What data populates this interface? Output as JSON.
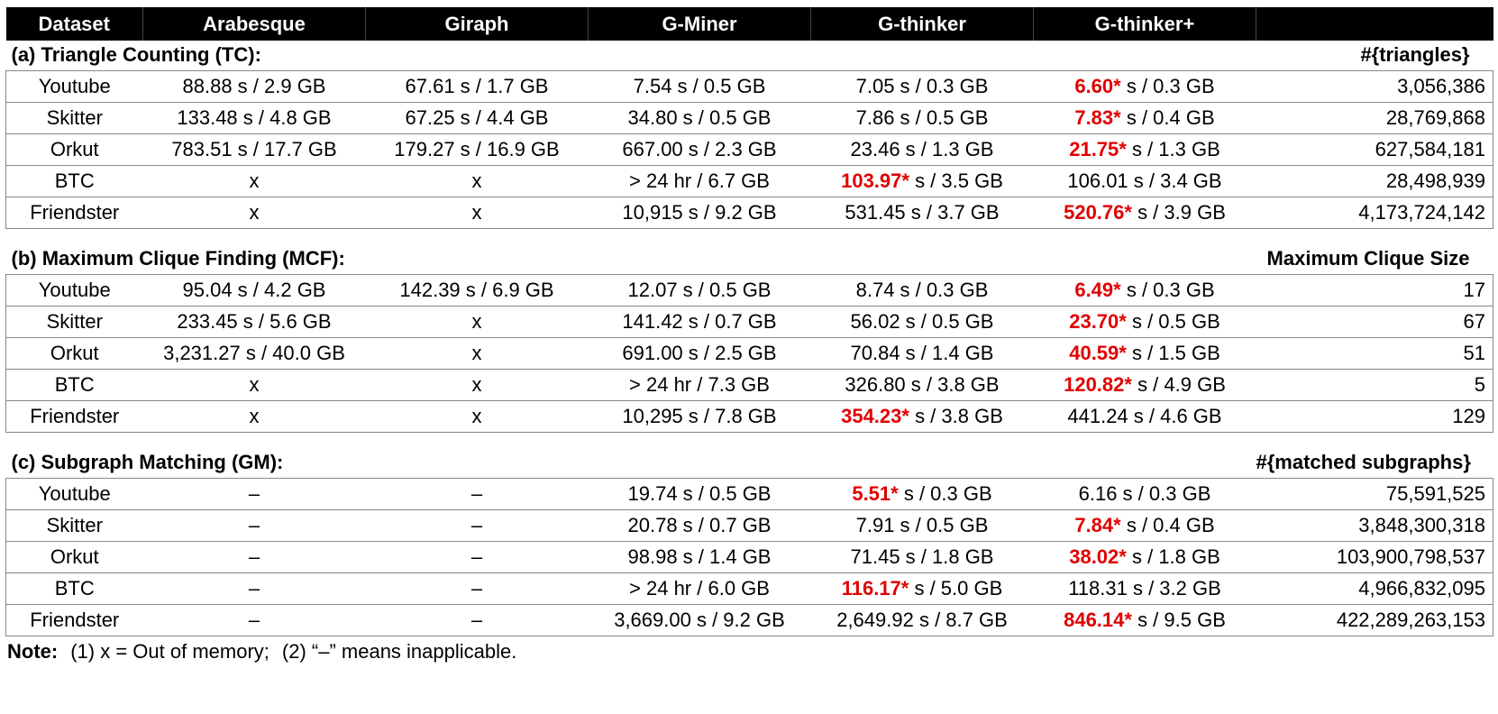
{
  "columns": [
    "Dataset",
    "Arabesque",
    "Giraph",
    "G-Miner",
    "G-thinker",
    "G-thinker+"
  ],
  "sections": [
    {
      "title": "(a) Triangle Counting (TC):",
      "count_header": "#{triangles}",
      "rows": [
        {
          "dataset": "Youtube",
          "cells": [
            "88.88 s / 2.9 GB",
            "67.61 s / 1.7 GB",
            "7.54 s / 0.5 GB",
            "7.05 s / 0.3 GB",
            {
              "best": "6.60*",
              "rest": " s / 0.3 GB"
            }
          ],
          "count": "3,056,386"
        },
        {
          "dataset": "Skitter",
          "cells": [
            "133.48 s / 4.8 GB",
            "67.25 s / 4.4 GB",
            "34.80 s / 0.5 GB",
            "7.86 s / 0.5 GB",
            {
              "best": "7.83*",
              "rest": " s / 0.4 GB"
            }
          ],
          "count": "28,769,868"
        },
        {
          "dataset": "Orkut",
          "cells": [
            "783.51 s / 17.7 GB",
            "179.27 s / 16.9 GB",
            "667.00 s / 2.3 GB",
            "23.46 s / 1.3 GB",
            {
              "best": "21.75*",
              "rest": " s / 1.3 GB"
            }
          ],
          "count": "627,584,181"
        },
        {
          "dataset": "BTC",
          "cells": [
            "x",
            "x",
            "> 24 hr / 6.7 GB",
            {
              "best": "103.97*",
              "rest": " s / 3.5 GB"
            },
            "106.01 s / 3.4 GB"
          ],
          "count": "28,498,939"
        },
        {
          "dataset": "Friendster",
          "cells": [
            "x",
            "x",
            "10,915 s / 9.2 GB",
            "531.45 s / 3.7 GB",
            {
              "best": "520.76*",
              "rest": " s / 3.9 GB"
            }
          ],
          "count": "4,173,724,142"
        }
      ]
    },
    {
      "title": "(b) Maximum Clique Finding (MCF):",
      "count_header": "Maximum Clique Size",
      "rows": [
        {
          "dataset": "Youtube",
          "cells": [
            "95.04 s / 4.2 GB",
            "142.39 s / 6.9 GB",
            "12.07 s / 0.5 GB",
            "8.74 s / 0.3 GB",
            {
              "best": "6.49*",
              "rest": " s / 0.3 GB"
            }
          ],
          "count": "17"
        },
        {
          "dataset": "Skitter",
          "cells": [
            "233.45 s / 5.6 GB",
            "x",
            "141.42 s / 0.7 GB",
            "56.02 s / 0.5 GB",
            {
              "best": "23.70*",
              "rest": " s / 0.5 GB"
            }
          ],
          "count": "67"
        },
        {
          "dataset": "Orkut",
          "cells": [
            "3,231.27 s / 40.0 GB",
            "x",
            "691.00 s / 2.5 GB",
            "70.84 s / 1.4 GB",
            {
              "best": "40.59*",
              "rest": " s / 1.5 GB"
            }
          ],
          "count": "51"
        },
        {
          "dataset": "BTC",
          "cells": [
            "x",
            "x",
            "> 24 hr / 7.3 GB",
            "326.80 s / 3.8 GB",
            {
              "best": "120.82*",
              "rest": " s / 4.9 GB"
            }
          ],
          "count": "5"
        },
        {
          "dataset": "Friendster",
          "cells": [
            "x",
            "x",
            "10,295 s / 7.8 GB",
            {
              "best": "354.23*",
              "rest": " s / 3.8 GB"
            },
            "441.24 s / 4.6 GB"
          ],
          "count": "129"
        }
      ]
    },
    {
      "title": "(c) Subgraph Matching (GM):",
      "count_header": "#{matched subgraphs}",
      "rows": [
        {
          "dataset": "Youtube",
          "cells": [
            "–",
            "–",
            "19.74 s / 0.5 GB",
            {
              "best": "5.51*",
              "rest": " s / 0.3 GB"
            },
            "6.16 s / 0.3 GB"
          ],
          "count": "75,591,525"
        },
        {
          "dataset": "Skitter",
          "cells": [
            "–",
            "–",
            "20.78 s / 0.7 GB",
            "7.91 s / 0.5 GB",
            {
              "best": "7.84*",
              "rest": " s / 0.4 GB"
            }
          ],
          "count": "3,848,300,318"
        },
        {
          "dataset": "Orkut",
          "cells": [
            "–",
            "–",
            "98.98 s / 1.4 GB",
            "71.45 s / 1.8 GB",
            {
              "best": "38.02*",
              "rest": " s / 1.8 GB"
            }
          ],
          "count": "103,900,798,537"
        },
        {
          "dataset": "BTC",
          "cells": [
            "–",
            "–",
            "> 24 hr / 6.0 GB",
            {
              "best": "116.17*",
              "rest": " s / 5.0 GB"
            },
            "118.31 s / 3.2 GB"
          ],
          "count": "4,966,832,095"
        },
        {
          "dataset": "Friendster",
          "cells": [
            "–",
            "–",
            "3,669.00 s / 9.2 GB",
            "2,649.92 s / 8.7 GB",
            {
              "best": "846.14*",
              "rest": " s / 9.5 GB"
            }
          ],
          "count": "422,289,263,153"
        }
      ]
    }
  ],
  "note": {
    "label": "Note:",
    "item1": "(1) x = Out of memory;",
    "item2": "(2) “–” means inapplicable."
  },
  "colors": {
    "header_bg": "#000000",
    "header_text": "#ffffff",
    "best": "#e00000"
  }
}
